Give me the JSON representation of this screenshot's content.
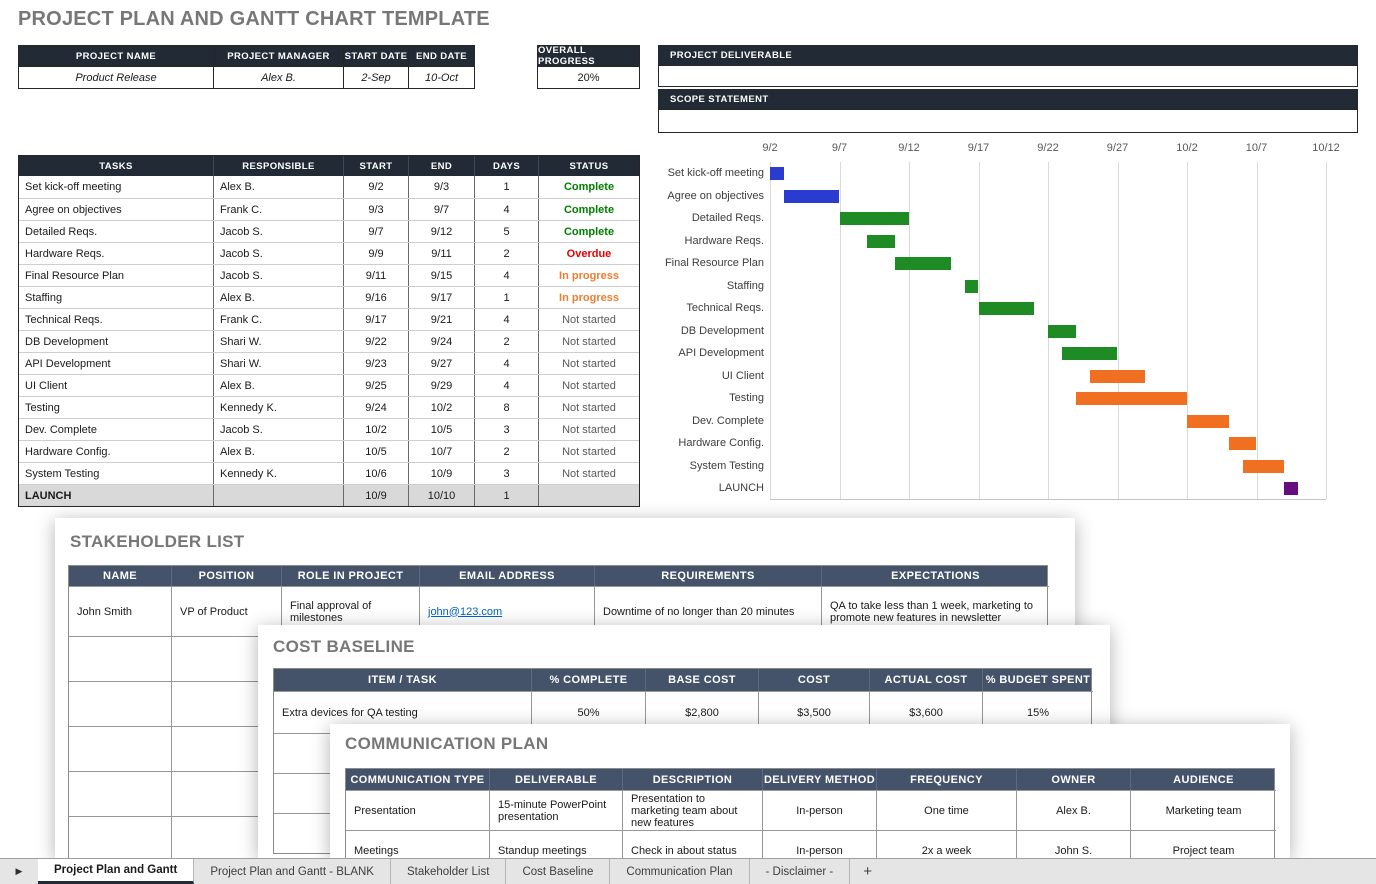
{
  "title": "PROJECT PLAN AND GANTT CHART TEMPLATE",
  "colors": {
    "header_dark": "#222b35",
    "header_slate": "#44536a",
    "bar_blue": "#2a3cd0",
    "bar_green": "#1f8b24",
    "bar_orange": "#f06f21",
    "bar_purple": "#660e7e",
    "status_complete": "#008000",
    "status_overdue": "#e80000",
    "status_in_progress": "#ed7d31",
    "status_not_started": "#595959",
    "link": "#0563c1"
  },
  "project_info": {
    "headers": [
      "PROJECT NAME",
      "PROJECT MANAGER",
      "START DATE",
      "END DATE"
    ],
    "values": [
      "Product Release",
      "Alex B.",
      "2-Sep",
      "10-Oct"
    ]
  },
  "overall_progress": {
    "header": "OVERALL PROGRESS",
    "value": "20%"
  },
  "project_deliverable": {
    "header": "PROJECT DELIVERABLE",
    "value": ""
  },
  "scope_statement": {
    "header": "SCOPE STATEMENT",
    "value": ""
  },
  "tasks_table": {
    "headers": [
      "TASKS",
      "RESPONSIBLE",
      "START",
      "END",
      "DAYS",
      "STATUS"
    ],
    "rows": [
      {
        "task": "Set kick-off meeting",
        "responsible": "Alex B.",
        "start": "9/2",
        "end": "9/3",
        "days": "1",
        "status": "Complete",
        "status_type": "complete"
      },
      {
        "task": "Agree on objectives",
        "responsible": "Frank C.",
        "start": "9/3",
        "end": "9/7",
        "days": "4",
        "status": "Complete",
        "status_type": "complete"
      },
      {
        "task": "Detailed Reqs.",
        "responsible": "Jacob S.",
        "start": "9/7",
        "end": "9/12",
        "days": "5",
        "status": "Complete",
        "status_type": "complete"
      },
      {
        "task": "Hardware Reqs.",
        "responsible": "Jacob S.",
        "start": "9/9",
        "end": "9/11",
        "days": "2",
        "status": "Overdue",
        "status_type": "overdue"
      },
      {
        "task": "Final Resource Plan",
        "responsible": "Jacob S.",
        "start": "9/11",
        "end": "9/15",
        "days": "4",
        "status": "In progress",
        "status_type": "in_progress"
      },
      {
        "task": "Staffing",
        "responsible": "Alex B.",
        "start": "9/16",
        "end": "9/17",
        "days": "1",
        "status": "In progress",
        "status_type": "in_progress"
      },
      {
        "task": "Technical Reqs.",
        "responsible": "Frank C.",
        "start": "9/17",
        "end": "9/21",
        "days": "4",
        "status": "Not started",
        "status_type": "not_started"
      },
      {
        "task": "DB Development",
        "responsible": "Shari W.",
        "start": "9/22",
        "end": "9/24",
        "days": "2",
        "status": "Not started",
        "status_type": "not_started"
      },
      {
        "task": "API Development",
        "responsible": "Shari W.",
        "start": "9/23",
        "end": "9/27",
        "days": "4",
        "status": "Not started",
        "status_type": "not_started"
      },
      {
        "task": "UI Client",
        "responsible": "Alex B.",
        "start": "9/25",
        "end": "9/29",
        "days": "4",
        "status": "Not started",
        "status_type": "not_started"
      },
      {
        "task": "Testing",
        "responsible": "Kennedy K.",
        "start": "9/24",
        "end": "10/2",
        "days": "8",
        "status": "Not started",
        "status_type": "not_started"
      },
      {
        "task": "Dev. Complete",
        "responsible": "Jacob S.",
        "start": "10/2",
        "end": "10/5",
        "days": "3",
        "status": "Not started",
        "status_type": "not_started"
      },
      {
        "task": "Hardware Config.",
        "responsible": "Alex B.",
        "start": "10/5",
        "end": "10/7",
        "days": "2",
        "status": "Not started",
        "status_type": "not_started"
      },
      {
        "task": "System Testing",
        "responsible": "Kennedy K.",
        "start": "10/6",
        "end": "10/9",
        "days": "3",
        "status": "Not started",
        "status_type": "not_started"
      },
      {
        "task": "LAUNCH",
        "responsible": "",
        "start": "10/9",
        "end": "10/10",
        "days": "1",
        "status": "",
        "status_type": "none",
        "highlight": true
      }
    ]
  },
  "chart_data": {
    "type": "gantt",
    "title": "",
    "x_ticks": [
      "9/2",
      "9/7",
      "9/12",
      "9/17",
      "9/22",
      "9/27",
      "10/2",
      "10/7",
      "10/12"
    ],
    "x_range_days": [
      0,
      40
    ],
    "grid": true,
    "tasks": [
      {
        "name": "Set kick-off meeting",
        "start": "9/2",
        "end": "9/3",
        "color": "blue"
      },
      {
        "name": "Agree on objectives",
        "start": "9/3",
        "end": "9/7",
        "color": "blue"
      },
      {
        "name": "Detailed Reqs.",
        "start": "9/7",
        "end": "9/12",
        "color": "green"
      },
      {
        "name": "Hardware Reqs.",
        "start": "9/9",
        "end": "9/11",
        "color": "green"
      },
      {
        "name": "Final Resource Plan",
        "start": "9/11",
        "end": "9/15",
        "color": "green"
      },
      {
        "name": "Staffing",
        "start": "9/16",
        "end": "9/17",
        "color": "green"
      },
      {
        "name": "Technical Reqs.",
        "start": "9/17",
        "end": "9/21",
        "color": "green"
      },
      {
        "name": "DB Development",
        "start": "9/22",
        "end": "9/24",
        "color": "green"
      },
      {
        "name": "API Development",
        "start": "9/23",
        "end": "9/27",
        "color": "green"
      },
      {
        "name": "UI Client",
        "start": "9/25",
        "end": "9/29",
        "color": "orange"
      },
      {
        "name": "Testing",
        "start": "9/24",
        "end": "10/2",
        "color": "orange"
      },
      {
        "name": "Dev. Complete",
        "start": "10/2",
        "end": "10/5",
        "color": "orange"
      },
      {
        "name": "Hardware Config.",
        "start": "10/5",
        "end": "10/7",
        "color": "orange"
      },
      {
        "name": "System Testing",
        "start": "10/6",
        "end": "10/9",
        "color": "orange"
      },
      {
        "name": "LAUNCH",
        "start": "10/9",
        "end": "10/10",
        "color": "purple"
      }
    ]
  },
  "stakeholder_list": {
    "title": "STAKEHOLDER LIST",
    "headers": [
      "NAME",
      "POSITION",
      "ROLE IN PROJECT",
      "EMAIL ADDRESS",
      "REQUIREMENTS",
      "EXPECTATIONS"
    ],
    "rows": [
      {
        "name": "John Smith",
        "position": "VP of Product",
        "role": "Final approval of milestones",
        "email": "john@123.com",
        "requirements": "Downtime of no longer than 20 minutes",
        "expectations": "QA to take less than 1 week, marketing to promote new features in newsletter"
      }
    ],
    "empty_row_count": 5
  },
  "cost_baseline": {
    "title": "COST BASELINE",
    "headers": [
      "ITEM / TASK",
      "% COMPLETE",
      "BASE COST",
      "COST",
      "ACTUAL COST",
      "% BUDGET SPENT"
    ],
    "rows": [
      {
        "item": "Extra devices for QA testing",
        "complete": "50%",
        "base_cost": "$2,800",
        "cost": "$3,500",
        "actual_cost": "$3,600",
        "budget_spent": "15%"
      }
    ],
    "empty_row_count": 3
  },
  "communication_plan": {
    "title": "COMMUNICATION PLAN",
    "headers": [
      "COMMUNICATION TYPE",
      "DELIVERABLE",
      "DESCRIPTION",
      "DELIVERY METHOD",
      "FREQUENCY",
      "OWNER",
      "AUDIENCE"
    ],
    "rows": [
      {
        "type": "Presentation",
        "deliverable": "15-minute PowerPoint presentation",
        "description": "Presentation to marketing team about new features",
        "method": "In-person",
        "frequency": "One time",
        "owner": "Alex B.",
        "audience": "Marketing team"
      },
      {
        "type": "Meetings",
        "deliverable": "Standup meetings",
        "description": "Check in about status",
        "method": "In-person",
        "frequency": "2x a week",
        "owner": "John S.",
        "audience": "Project team"
      }
    ]
  },
  "sheet_tabs": {
    "nav_arrow": "▶",
    "add_label": "+",
    "tabs": [
      {
        "label": "Project Plan and Gantt",
        "active": true
      },
      {
        "label": "Project Plan and Gantt - BLANK",
        "active": false
      },
      {
        "label": "Stakeholder List",
        "active": false
      },
      {
        "label": "Cost Baseline",
        "active": false
      },
      {
        "label": "Communication Plan",
        "active": false
      },
      {
        "label": "- Disclaimer -",
        "active": false
      }
    ]
  }
}
